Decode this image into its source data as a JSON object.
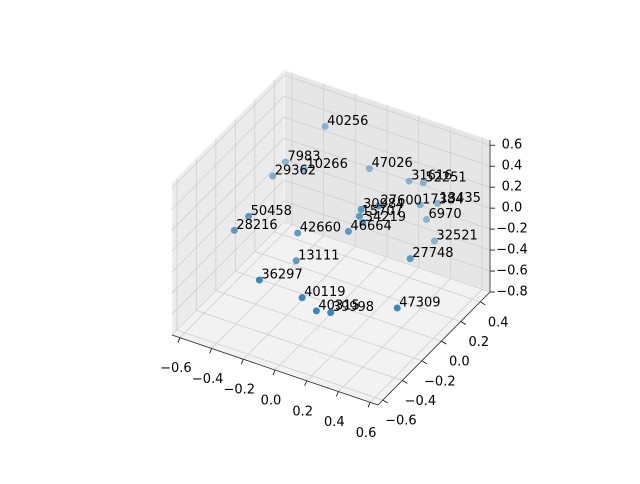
{
  "chart_data": {
    "type": "scatter3d",
    "xlim": [
      -0.65,
      0.65
    ],
    "ylim": [
      -0.65,
      0.5
    ],
    "zlim": [
      -0.8,
      0.65
    ],
    "xticks": [
      {
        "value": -0.6,
        "label": "−0.6"
      },
      {
        "value": -0.4,
        "label": "−0.4"
      },
      {
        "value": -0.2,
        "label": "−0.2"
      },
      {
        "value": 0,
        "label": "0.0"
      },
      {
        "value": 0.2,
        "label": "0.2"
      },
      {
        "value": 0.4,
        "label": "0.4"
      },
      {
        "value": 0.6,
        "label": "0.6"
      }
    ],
    "yticks": [
      {
        "value": -0.6,
        "label": "−0.6"
      },
      {
        "value": -0.4,
        "label": "−0.4"
      },
      {
        "value": -0.2,
        "label": "−0.2"
      },
      {
        "value": 0,
        "label": "0.0"
      },
      {
        "value": 0.2,
        "label": "0.2"
      },
      {
        "value": 0.4,
        "label": "0.4"
      }
    ],
    "zticks": [
      {
        "value": -0.8,
        "label": "−0.8"
      },
      {
        "value": -0.6,
        "label": "−0.6"
      },
      {
        "value": -0.4,
        "label": "−0.4"
      },
      {
        "value": -0.2,
        "label": "−0.2"
      },
      {
        "value": 0,
        "label": "0.0"
      },
      {
        "value": 0.2,
        "label": "0.2"
      },
      {
        "value": 0.4,
        "label": "0.4"
      },
      {
        "value": 0.6,
        "label": "0.6"
      }
    ],
    "grid": true,
    "series": [
      {
        "color": "#1f77b4",
        "labels": [
          "40256",
          "7983",
          "10266",
          "29362",
          "47026",
          "31616",
          "52251",
          "27600",
          "17384",
          "13435",
          "30984",
          "6970",
          "15707",
          "34219",
          "46664",
          "42660",
          "50458",
          "28216",
          "32521",
          "27748",
          "13111",
          "36297",
          "40119",
          "40315",
          "39998",
          "47309"
        ],
        "x": [
          -0.32,
          -0.57,
          -0.45,
          -0.58,
          -0.04,
          0.21,
          0.3,
          0.3,
          0.28,
          0.39,
          0.19,
          0.32,
          0.18,
          0.2,
          0.11,
          -0.21,
          -0.52,
          -0.61,
          0.37,
          0.5,
          -0.22,
          -0.24,
          0.03,
          0.12,
          0.21,
          0.63
        ],
        "y": [
          0.385,
          0.385,
          0.385,
          0.27,
          0.385,
          0.385,
          0.385,
          -0.075,
          0.385,
          0.385,
          -0.075,
          0.385,
          -0.075,
          -0.075,
          -0.075,
          -0.075,
          -0.075,
          -0.075,
          0.385,
          -0.075,
          -0.075,
          -0.42,
          -0.42,
          -0.42,
          -0.42,
          -0.42
        ],
        "z": [
          0.39,
          -0.08,
          -0.09,
          -0.11,
          0.13,
          0.14,
          0.17,
          0.38,
          -0.05,
          0.02,
          0.29,
          -0.17,
          0.22,
          0.17,
          0.04,
          -0.14,
          -0.14,
          -0.32,
          -0.35,
          -0.02,
          -0.41,
          -0.28,
          -0.31,
          -0.39,
          -0.36,
          -0.1
        ]
      }
    ]
  }
}
